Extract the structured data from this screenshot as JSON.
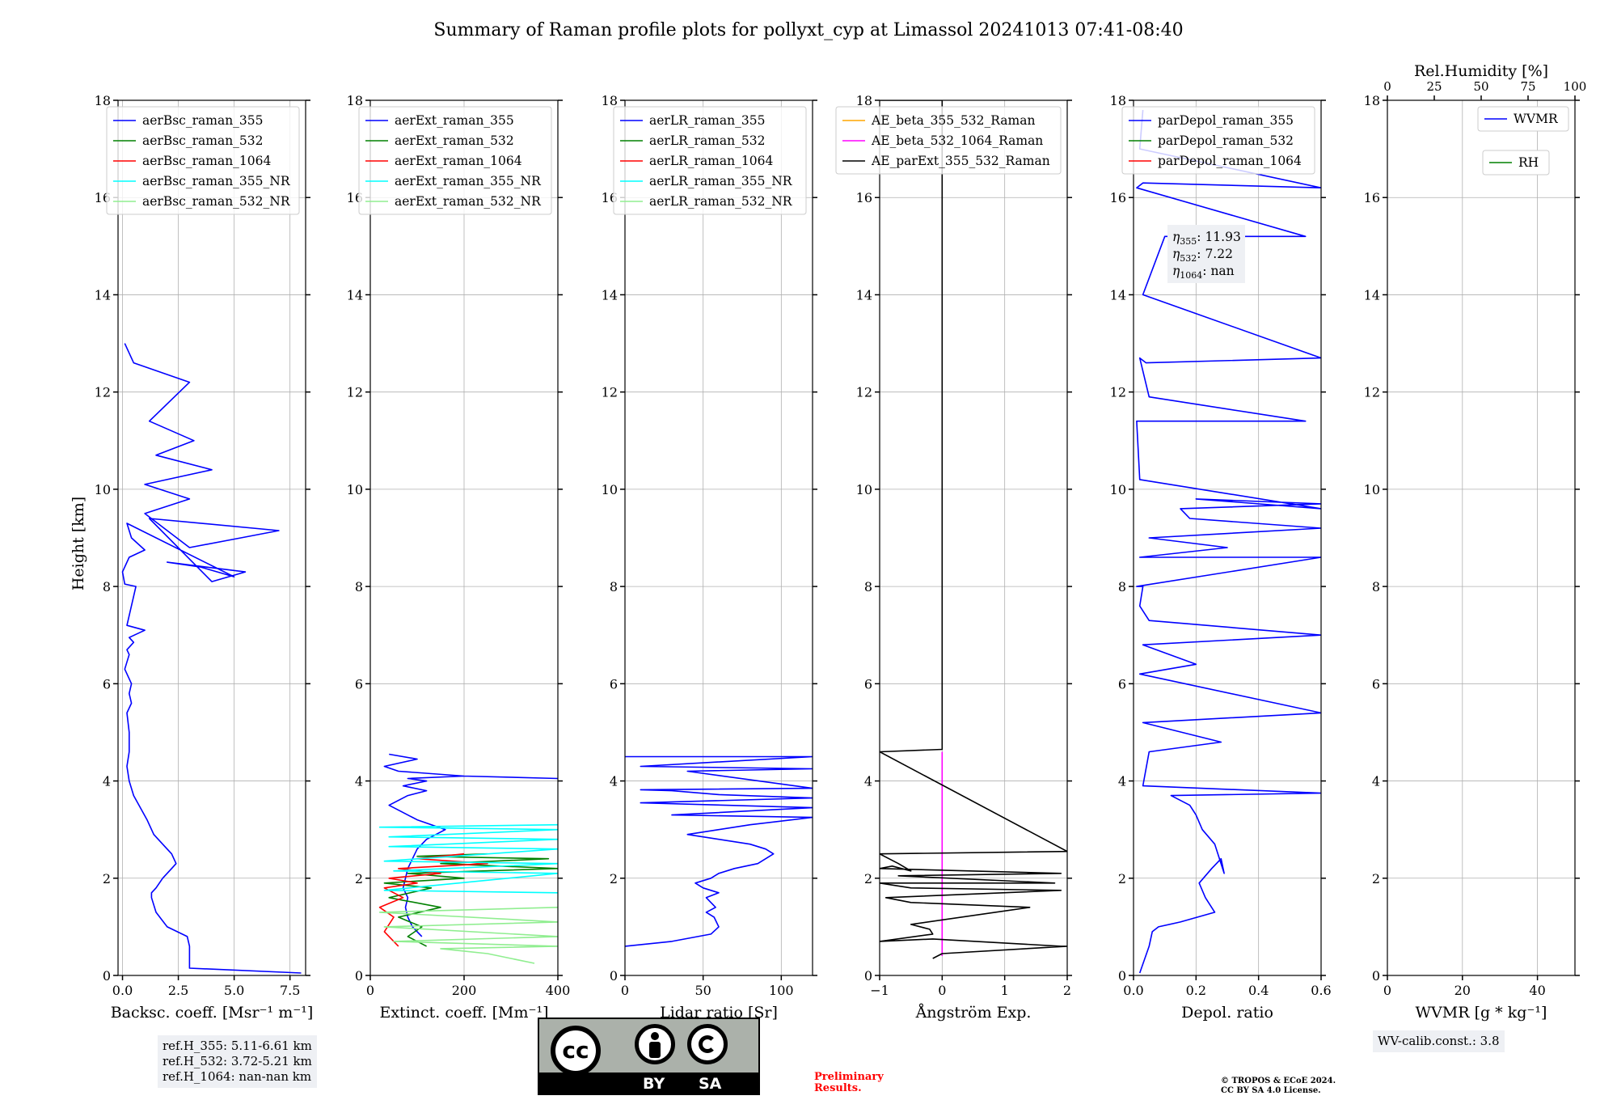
{
  "figure_title": "Summary of Raman profile plots for pollyxt_cyp at Limassol 20241013 07:41-08:40",
  "y_axis_label": "Height [km]",
  "ylim": [
    0,
    18
  ],
  "y_ticks": [
    0,
    2,
    4,
    6,
    8,
    10,
    12,
    14,
    16,
    18
  ],
  "colors": {
    "blue": "#0000ff",
    "green": "#008000",
    "red": "#ff0000",
    "cyan": "#00ffff",
    "lightgreen": "#90ee90",
    "orange": "#ffa500",
    "magenta": "#ff00ff",
    "black": "#000000",
    "cc_gray": "#abb1aa",
    "preliminary_red": "#ff0000"
  },
  "chart_data": [
    {
      "type": "line",
      "id": "bsc",
      "xlabel": "Backsc. coeff. [Msr⁻¹ m⁻¹]",
      "xlim": [
        -0.2,
        8.2
      ],
      "x_ticks": [
        "0.0",
        "2.5",
        "5.0",
        "7.5"
      ],
      "x_tick_values": [
        0,
        2.5,
        5,
        7.5
      ],
      "legend": [
        "aerBsc_raman_355",
        "aerBsc_raman_532",
        "aerBsc_raman_1064",
        "aerBsc_raman_355_NR",
        "aerBsc_raman_532_NR"
      ],
      "legend_placement": "top-right",
      "series": [
        {
          "name": "aerBsc_raman_355",
          "color": "blue",
          "x": [
            8.0,
            3.0,
            3.0,
            2.9,
            2.0,
            1.5,
            1.3,
            1.3,
            1.5,
            1.8,
            2.2,
            2.4,
            2.2,
            1.8,
            1.4,
            1.1,
            0.5,
            0.3,
            0.2,
            0.3,
            0.3,
            0.2,
            0.4,
            0.3,
            0.4,
            0.1,
            0.3,
            0.2,
            0.5,
            0.3,
            1.0,
            0.2,
            0.6,
            0.1,
            0.0,
            0.3,
            1.0,
            0.4,
            0.2,
            5.0,
            3.5,
            2.0,
            5.5,
            4.0,
            1.2,
            7.0,
            5.3,
            3.0,
            1.0,
            3.0,
            1.0,
            4.0,
            1.5,
            3.2,
            1.2,
            3.0,
            0.5,
            0.1
          ],
          "y": [
            0.05,
            0.15,
            0.6,
            0.8,
            1.0,
            1.3,
            1.6,
            1.7,
            1.8,
            2.0,
            2.2,
            2.3,
            2.5,
            2.7,
            2.9,
            3.2,
            3.7,
            4.0,
            4.3,
            4.6,
            5.0,
            5.4,
            5.6,
            5.8,
            6.0,
            6.3,
            6.6,
            6.7,
            6.85,
            6.95,
            7.1,
            7.2,
            8.0,
            8.05,
            8.3,
            8.6,
            8.75,
            9.0,
            9.3,
            8.2,
            8.4,
            8.5,
            8.3,
            8.1,
            9.4,
            9.15,
            9.0,
            8.8,
            9.5,
            9.8,
            10.1,
            10.4,
            10.7,
            11.0,
            11.4,
            12.2,
            12.6,
            13.0
          ]
        },
        {
          "name": "aerBsc_raman_532",
          "color": "green",
          "x": [],
          "y": []
        },
        {
          "name": "aerBsc_raman_1064",
          "color": "red",
          "x": [],
          "y": []
        },
        {
          "name": "aerBsc_raman_355_NR",
          "color": "cyan",
          "x": [],
          "y": []
        },
        {
          "name": "aerBsc_raman_532_NR",
          "color": "lightgreen",
          "x": [],
          "y": []
        }
      ]
    },
    {
      "type": "line",
      "id": "ext",
      "xlabel": "Extinct. coeff. [Mm⁻¹]",
      "xlim": [
        0,
        400
      ],
      "x_ticks": [
        "0",
        "200",
        "400"
      ],
      "x_tick_values": [
        0,
        200,
        400
      ],
      "legend": [
        "aerExt_raman_355",
        "aerExt_raman_532",
        "aerExt_raman_1064",
        "aerExt_raman_355_NR",
        "aerExt_raman_532_NR"
      ],
      "legend_placement": "top-right",
      "series": [
        {
          "name": "aerExt_raman_355",
          "color": "blue",
          "x": [
            110,
            90,
            80,
            75,
            80,
            70,
            75,
            80,
            90,
            100,
            120,
            160,
            100,
            60,
            40,
            80,
            120,
            70,
            120,
            80,
            200,
            400,
            200,
            60,
            30,
            100,
            40
          ],
          "y": [
            0.8,
            1.0,
            1.2,
            1.4,
            1.6,
            1.8,
            2.0,
            2.2,
            2.4,
            2.6,
            2.8,
            3.0,
            3.2,
            3.4,
            3.5,
            3.7,
            3.8,
            3.9,
            4.0,
            4.05,
            4.1,
            4.05,
            4.1,
            4.2,
            4.3,
            4.45,
            4.55
          ]
        },
        {
          "name": "aerExt_raman_532",
          "color": "green",
          "x": [
            120,
            80,
            110,
            60,
            150,
            40,
            130,
            30,
            200,
            80,
            400,
            150,
            380,
            100,
            250
          ],
          "y": [
            0.6,
            0.8,
            1.0,
            1.2,
            1.4,
            1.6,
            1.8,
            1.9,
            2.0,
            2.1,
            2.2,
            2.3,
            2.4,
            2.45,
            2.5
          ]
        },
        {
          "name": "aerExt_raman_1064",
          "color": "red",
          "x": [
            60,
            30,
            50,
            20,
            70,
            30,
            100,
            40,
            150,
            60,
            250,
            100,
            200
          ],
          "y": [
            0.6,
            0.9,
            1.2,
            1.4,
            1.6,
            1.8,
            1.9,
            2.0,
            2.1,
            2.2,
            2.3,
            2.4,
            2.5
          ]
        },
        {
          "name": "aerExt_raman_355_NR",
          "color": "cyan",
          "x": [
            400,
            30,
            400,
            50,
            400,
            30,
            400,
            40,
            400,
            40,
            400,
            20,
            400
          ],
          "y": [
            1.7,
            1.75,
            2.1,
            2.15,
            2.3,
            2.35,
            2.6,
            2.65,
            2.8,
            2.85,
            3.0,
            3.05,
            3.1
          ]
        },
        {
          "name": "aerExt_raman_532_NR",
          "color": "lightgreen",
          "x": [
            350,
            300,
            250,
            200,
            150,
            400,
            50,
            400,
            30,
            400,
            20,
            400
          ],
          "y": [
            0.25,
            0.35,
            0.45,
            0.5,
            0.55,
            0.6,
            0.7,
            0.8,
            1.0,
            1.1,
            1.3,
            1.4
          ]
        }
      ]
    },
    {
      "type": "line",
      "id": "lr",
      "xlabel": "Lidar ratio [Sr]",
      "xlim": [
        0,
        120
      ],
      "x_ticks": [
        "0",
        "50",
        "100"
      ],
      "x_tick_values": [
        0,
        50,
        100
      ],
      "legend": [
        "aerLR_raman_355",
        "aerLR_raman_532",
        "aerLR_raman_1064",
        "aerLR_raman_355_NR",
        "aerLR_raman_532_NR"
      ],
      "legend_placement": "top-right",
      "series": [
        {
          "name": "aerLR_raman_355",
          "color": "blue",
          "x": [
            0,
            30,
            55,
            60,
            57,
            52,
            58,
            55,
            52,
            60,
            50,
            45,
            55,
            60,
            70,
            85,
            90,
            95,
            90,
            80,
            60,
            40,
            60,
            80,
            120,
            30,
            120,
            10,
            120,
            60,
            30,
            10,
            120,
            40,
            120,
            10,
            120,
            0
          ],
          "y": [
            0.6,
            0.7,
            0.85,
            1.0,
            1.2,
            1.3,
            1.4,
            1.5,
            1.6,
            1.7,
            1.8,
            1.9,
            2.0,
            2.1,
            2.2,
            2.3,
            2.4,
            2.5,
            2.6,
            2.7,
            2.8,
            2.9,
            3.0,
            3.1,
            3.25,
            3.3,
            3.45,
            3.55,
            3.65,
            3.72,
            3.8,
            3.82,
            3.85,
            4.2,
            4.25,
            4.3,
            4.5,
            4.5
          ]
        },
        {
          "name": "aerLR_raman_532",
          "color": "green",
          "x": [],
          "y": []
        },
        {
          "name": "aerLR_raman_1064",
          "color": "red",
          "x": [],
          "y": []
        },
        {
          "name": "aerLR_raman_355_NR",
          "color": "cyan",
          "x": [],
          "y": []
        },
        {
          "name": "aerLR_raman_532_NR",
          "color": "lightgreen",
          "x": [],
          "y": []
        }
      ]
    },
    {
      "type": "line",
      "id": "ae",
      "xlabel": "Ångström Exp.",
      "xlim": [
        -1,
        2
      ],
      "x_ticks": [
        "−1",
        "0",
        "1",
        "2"
      ],
      "x_tick_values": [
        -1,
        0,
        1,
        2
      ],
      "legend": [
        "AE_beta_355_532_Raman",
        "AE_beta_532_1064_Raman",
        "AE_parExt_355_532_Raman"
      ],
      "legend_placement": "top-right",
      "series": [
        {
          "name": "AE_beta_355_532_Raman",
          "color": "orange",
          "x": [],
          "y": []
        },
        {
          "name": "AE_beta_532_1064_Raman",
          "color": "magenta",
          "x": [
            0,
            0
          ],
          "y": [
            0.4,
            4.6
          ]
        },
        {
          "name": "AE_parExt_355_532_Raman",
          "color": "black",
          "x": [
            -0.15,
            0.0,
            2.0,
            1.9,
            -0.15,
            -1.0,
            -0.15,
            -0.2,
            -0.5,
            1.4,
            -0.5,
            -0.9,
            1.9,
            -0.5,
            -1.0,
            1.8,
            -0.7,
            1.9,
            -1.0,
            -0.8,
            -0.5,
            -0.7,
            -1.0,
            2.0,
            -1.0,
            0.0,
            0.0,
            -1.0
          ],
          "y": [
            0.35,
            0.45,
            0.6,
            0.6,
            0.75,
            0.7,
            0.85,
            0.95,
            1.05,
            1.4,
            1.5,
            1.6,
            1.75,
            1.8,
            1.9,
            1.9,
            2.05,
            2.1,
            2.2,
            2.25,
            2.15,
            2.3,
            2.5,
            2.55,
            4.6,
            4.65,
            18,
            18
          ]
        }
      ]
    },
    {
      "type": "line",
      "id": "depol",
      "xlabel": "Depol. ratio",
      "xlim": [
        0,
        0.6
      ],
      "x_ticks": [
        "0.0",
        "0.2",
        "0.4",
        "0.6"
      ],
      "x_tick_values": [
        0,
        0.2,
        0.4,
        0.6
      ],
      "legend": [
        "parDepol_raman_355",
        "parDepol_raman_532",
        "parDepol_raman_1064"
      ],
      "legend_placement": "top-right",
      "annotation": [
        "η355: 11.93",
        "η532: 7.22",
        "η1064: nan"
      ],
      "series": [
        {
          "name": "parDepol_raman_355",
          "color": "blue",
          "x": [
            0.02,
            0.05,
            0.06,
            0.08,
            0.15,
            0.26,
            0.23,
            0.21,
            0.25,
            0.28,
            0.29,
            0.26,
            0.22,
            0.2,
            0.18,
            0.12,
            0.6,
            0.03,
            0.05,
            0.28,
            0.03,
            0.6,
            0.02,
            0.2,
            0.03,
            0.6,
            0.05,
            0.02,
            0.03,
            0.01,
            0.6,
            0.02,
            0.3,
            0.05,
            0.6,
            0.18,
            0.15,
            0.6,
            0.2,
            0.6,
            0.02,
            0.01,
            0.55,
            0.05,
            0.02,
            0.04,
            0.6,
            0.03,
            0.1,
            0.55,
            0.01,
            0.03,
            0.6,
            0.02,
            0.03
          ],
          "y": [
            0.05,
            0.6,
            0.9,
            1.0,
            1.1,
            1.3,
            1.6,
            1.9,
            2.2,
            2.4,
            2.1,
            2.7,
            3.0,
            3.3,
            3.5,
            3.7,
            3.75,
            3.9,
            4.6,
            4.8,
            5.2,
            5.4,
            6.2,
            6.4,
            6.8,
            7.0,
            7.3,
            7.6,
            8.0,
            8.0,
            8.6,
            8.6,
            8.8,
            9.0,
            9.2,
            9.4,
            9.6,
            9.7,
            9.8,
            9.6,
            10.2,
            11.4,
            11.4,
            11.9,
            12.7,
            12.6,
            12.7,
            14.0,
            15.2,
            15.2,
            16.2,
            16.3,
            16.2,
            17.0,
            17.8
          ]
        },
        {
          "name": "parDepol_raman_532",
          "color": "green",
          "x": [],
          "y": []
        },
        {
          "name": "parDepol_raman_1064",
          "color": "red",
          "x": [],
          "y": []
        }
      ]
    },
    {
      "type": "line",
      "id": "wv",
      "xlabel": "WVMR [g * kg⁻¹]",
      "xlim": [
        0,
        50
      ],
      "x_ticks": [
        "0",
        "20",
        "40"
      ],
      "x_tick_values": [
        0,
        20,
        40
      ],
      "top_xlabel": "Rel.Humidity [%]",
      "top_ticks": [
        "0",
        "25",
        "50",
        "75",
        "100"
      ],
      "top_tick_values": [
        0,
        25,
        50,
        75,
        100
      ],
      "legend": [
        "WVMR",
        "RH"
      ],
      "series": [
        {
          "name": "WVMR",
          "color": "blue",
          "x": [],
          "y": []
        },
        {
          "name": "RH",
          "color": "green",
          "x": [],
          "y": []
        }
      ]
    }
  ],
  "ref_heights": [
    "ref.H_355: 5.11-6.61 km",
    "ref.H_532: 3.72-5.21 km",
    "ref.H_1064: nan-nan km"
  ],
  "wv_calib": "WV-calib.const.: 3.8",
  "license_logo": {
    "cc": "cc",
    "by": "BY",
    "sa": "SA"
  },
  "preliminary": "Preliminary\nResults.",
  "copyright": [
    "© TROPOS & ECoE 2024.",
    "CC BY SA 4.0 License."
  ]
}
